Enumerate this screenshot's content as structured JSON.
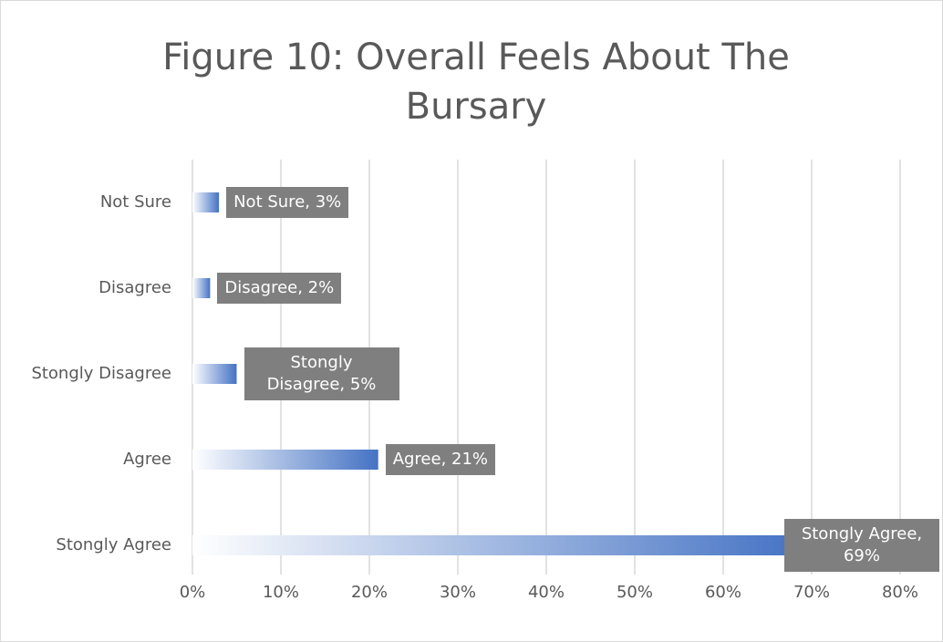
{
  "chart_data": {
    "type": "barh",
    "title": "Figure 10: Overall Feels About The Bursary",
    "categories": [
      "Not Sure",
      "Disagree",
      "Stongly Disagree",
      "Agree",
      "Stongly Agree"
    ],
    "values": [
      3,
      2,
      5,
      21,
      69
    ],
    "value_labels": [
      "Not Sure, 3%",
      "Disagree, 2%",
      "Stongly Disagree, 5%",
      "Agree, 21%",
      "Stongly Agree, 69%"
    ],
    "color": "#4472c4",
    "xlim": [
      0,
      80
    ],
    "xticks": [
      {
        "value": 0,
        "label": "0%"
      },
      {
        "value": 10,
        "label": "10%"
      },
      {
        "value": 20,
        "label": "20%"
      },
      {
        "value": 30,
        "label": "30%"
      },
      {
        "value": 40,
        "label": "40%"
      },
      {
        "value": 50,
        "label": "50%"
      },
      {
        "value": 60,
        "label": "60%"
      },
      {
        "value": 70,
        "label": "70%"
      },
      {
        "value": 80,
        "label": "80%"
      }
    ],
    "grid": true
  }
}
